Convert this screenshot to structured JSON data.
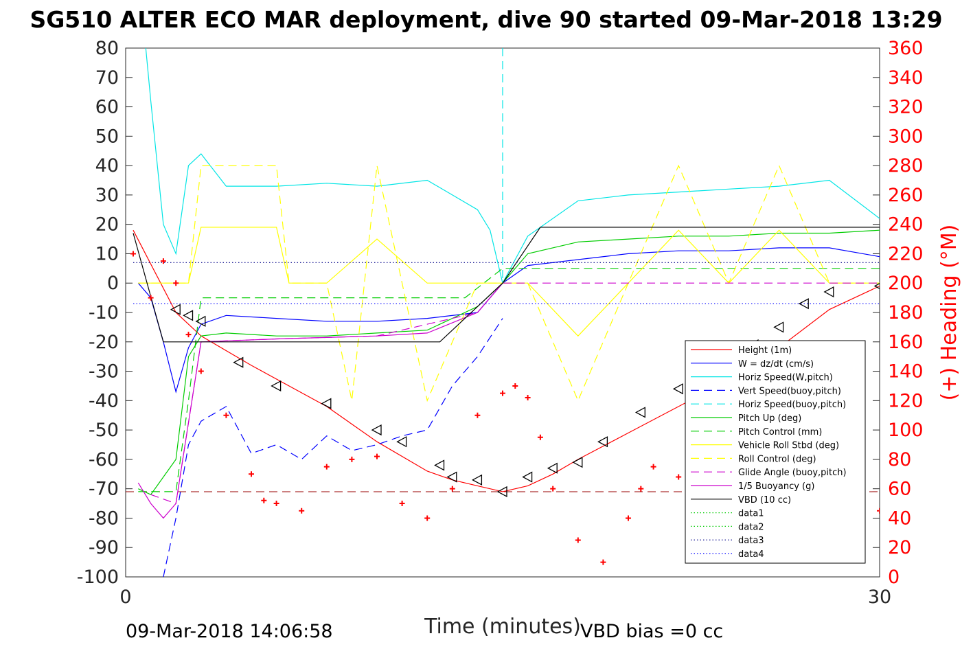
{
  "chart_data": {
    "type": "line",
    "title": "SG510 ALTER ECO MAR deployment, dive 90 started 09-Mar-2018 13:29",
    "xlabel": "Time (minutes)",
    "ylabel": "",
    "y2label": "(+) Heading (°M)",
    "xlim": [
      0,
      30
    ],
    "ylim": [
      -100,
      80
    ],
    "y2lim": [
      0,
      360
    ],
    "x_ticks": [
      "0",
      "30"
    ],
    "y_ticks": [
      "80",
      "70",
      "60",
      "50",
      "40",
      "30",
      "20",
      "10",
      "0",
      "-10",
      "-20",
      "-30",
      "-40",
      "-50",
      "-60",
      "-70",
      "-80",
      "-90",
      "-100"
    ],
    "y2_ticks": [
      "360",
      "340",
      "320",
      "300",
      "280",
      "260",
      "240",
      "220",
      "200",
      "180",
      "160",
      "140",
      "120",
      "100",
      "80",
      "60",
      "40",
      "20",
      "0"
    ],
    "footer_left": "09-Mar-2018 14:06:58",
    "footer_right": "VBD bias =0 cc",
    "legend_position": "lower-right (inside)",
    "series": [
      {
        "name": "Height (1m)",
        "color": "#ff0000",
        "style": "solid",
        "x": [
          0.3,
          2.0,
          3.0,
          5.0,
          8.0,
          10.0,
          12.0,
          13.0,
          14.0,
          15.0,
          16.0,
          17.0,
          18.0,
          20.0,
          22.0,
          24.0,
          26.0,
          28.0,
          30.0
        ],
        "y": [
          18.0,
          -10.0,
          -18.0,
          -28.0,
          -42.0,
          -54.0,
          -64.0,
          -67.0,
          -69.0,
          -71.0,
          -69.0,
          -65.0,
          -60.0,
          -51.0,
          -42.0,
          -33.0,
          -22.0,
          -9.0,
          -1.0
        ]
      },
      {
        "name": "W = dz/dt (cm/s)",
        "color": "#0000ff",
        "style": "solid",
        "x": [
          0.5,
          1.0,
          1.5,
          2.0,
          2.5,
          3.0,
          4.0,
          6.0,
          8.0,
          10.0,
          12.0,
          14.0,
          15.0,
          16.0,
          18.0,
          20.0,
          22.0,
          24.0,
          26.0,
          28.0,
          30.0
        ],
        "y": [
          0.0,
          -5.0,
          -20.0,
          -37.0,
          -22.0,
          -14.0,
          -11.0,
          -12.0,
          -13.0,
          -13.0,
          -12.0,
          -10.0,
          0.0,
          6.0,
          8.0,
          10.0,
          11.0,
          11.0,
          12.0,
          12.0,
          9.0
        ]
      },
      {
        "name": "Horiz Speed(W,pitch)",
        "color": "#00e5e5",
        "style": "solid",
        "x": [
          0.8,
          1.0,
          1.5,
          2.0,
          2.5,
          3.0,
          4.0,
          6.0,
          8.0,
          10.0,
          12.0,
          13.0,
          14.0,
          14.5,
          15.0,
          16.0,
          18.0,
          20.0,
          22.0,
          24.0,
          26.0,
          28.0,
          30.0
        ],
        "y": [
          80.0,
          62.0,
          20.0,
          10.0,
          40.0,
          44.0,
          33.0,
          33.0,
          34.0,
          33.0,
          35.0,
          30.0,
          25.0,
          18.0,
          0.0,
          16.0,
          28.0,
          30.0,
          31.0,
          32.0,
          33.0,
          35.0,
          22.0
        ]
      },
      {
        "name": "Vert Speed(buoy,pitch)",
        "color": "#0000ff",
        "style": "dashed",
        "x": [
          1.5,
          2.0,
          2.5,
          3.0,
          4.0,
          5.0,
          6.0,
          7.0,
          8.0,
          9.0,
          10.0,
          11.0,
          12.0,
          13.0,
          14.0,
          15.0
        ],
        "y": [
          -100.0,
          -80.0,
          -55.0,
          -47.0,
          -42.0,
          -58.0,
          -55.0,
          -60.0,
          -52.0,
          -57.0,
          -55.0,
          -52.0,
          -50.0,
          -35.0,
          -25.0,
          -12.0
        ]
      },
      {
        "name": "Horiz Speed(buoy,pitch)",
        "color": "#00e5e5",
        "style": "dashed",
        "x": [
          15.0,
          15.0
        ],
        "y": [
          80.0,
          0.0
        ]
      },
      {
        "name": "Pitch Up (deg)",
        "color": "#00cc00",
        "style": "solid",
        "x": [
          0.5,
          1.0,
          2.0,
          2.5,
          3.0,
          4.0,
          6.0,
          8.0,
          10.0,
          12.0,
          13.0,
          14.0,
          15.0,
          16.0,
          18.0,
          20.0,
          22.0,
          24.0,
          26.0,
          28.0,
          30.0
        ],
        "y": [
          -70.0,
          -72.0,
          -60.0,
          -25.0,
          -18.0,
          -17.0,
          -18.0,
          -18.0,
          -17.0,
          -16.0,
          -12.0,
          -8.0,
          0.0,
          10.0,
          14.0,
          15.0,
          16.0,
          16.0,
          17.0,
          17.0,
          18.0
        ]
      },
      {
        "name": "Pitch Control (mm)",
        "color": "#00cc00",
        "style": "dashed",
        "x": [
          0.5,
          2.0,
          2.5,
          3.0,
          4.0,
          6.0,
          8.0,
          10.0,
          12.0,
          13.5,
          15.0,
          16.0,
          18.0,
          20.0,
          22.0,
          24.0,
          26.0,
          28.0,
          30.0
        ],
        "y": [
          -71.0,
          -71.0,
          -40.0,
          -5.0,
          -5.0,
          -5.0,
          -5.0,
          -5.0,
          -5.0,
          -5.0,
          5.0,
          5.0,
          5.0,
          5.0,
          5.0,
          5.0,
          5.0,
          5.0,
          5.0
        ]
      },
      {
        "name": "Vehicle Roll Stbd (deg)",
        "color": "#ffff00",
        "style": "solid",
        "x": [
          0.5,
          2.5,
          3.0,
          6.0,
          6.5,
          8.0,
          10.0,
          12.0,
          14.0,
          16.0,
          18.0,
          20.0,
          22.0,
          24.0,
          26.0,
          28.0,
          30.0
        ],
        "y": [
          0.0,
          0.0,
          19.0,
          19.0,
          0.0,
          0.0,
          15.0,
          0.0,
          0.0,
          0.0,
          -18.0,
          0.0,
          18.0,
          0.0,
          18.0,
          0.0,
          0.0
        ]
      },
      {
        "name": "Roll Control (deg)",
        "color": "#ffff00",
        "style": "dashed",
        "x": [
          0.5,
          2.5,
          3.0,
          6.0,
          6.5,
          8.0,
          9.0,
          10.0,
          11.0,
          12.0,
          14.0,
          16.0,
          18.0,
          20.0,
          22.0,
          24.0,
          26.0,
          28.0,
          30.0
        ],
        "y": [
          0.0,
          0.0,
          40.0,
          40.0,
          0.0,
          0.0,
          -40.0,
          40.0,
          0.0,
          -40.0,
          0.0,
          0.0,
          -40.0,
          0.0,
          40.0,
          0.0,
          40.0,
          0.0,
          0.0
        ]
      },
      {
        "name": "Glide Angle (buoy,pitch)",
        "color": "#cc00cc",
        "style": "dashed",
        "x": [
          1.0,
          2.0,
          3.0,
          6.0,
          10.0,
          14.0,
          15.0,
          30.0
        ],
        "y": [
          -72.0,
          -75.0,
          -20.0,
          -19.0,
          -18.0,
          -10.0,
          0.0,
          0.0
        ]
      },
      {
        "name": "1/5 Buoyancy (g)",
        "color": "#cc00cc",
        "style": "solid",
        "x": [
          0.5,
          1.0,
          1.5,
          2.0,
          3.0,
          6.0,
          10.0,
          12.0,
          14.0,
          15.0
        ],
        "y": [
          -68.0,
          -75.0,
          -80.0,
          -75.0,
          -20.0,
          -19.0,
          -18.0,
          -17.0,
          -10.0,
          0.0
        ]
      },
      {
        "name": "VBD (10 cc)",
        "color": "#000000",
        "style": "solid",
        "x": [
          0.3,
          1.5,
          4.0,
          6.0,
          8.0,
          10.0,
          12.0,
          12.5,
          15.0,
          16.5,
          18.0,
          20.0,
          22.0,
          24.0,
          26.0,
          28.0,
          30.0
        ],
        "y": [
          17.0,
          -20.0,
          -20.0,
          -20.0,
          -20.0,
          -20.0,
          -20.0,
          -20.0,
          0.0,
          19.0,
          19.0,
          19.0,
          19.0,
          19.0,
          19.0,
          19.0,
          19.0
        ]
      },
      {
        "name": "data1",
        "color": "#00cc00",
        "style": "dotted",
        "x": [],
        "y": []
      },
      {
        "name": "data2",
        "color": "#00cc00",
        "style": "dotted",
        "x": [],
        "y": []
      },
      {
        "name": "data3",
        "color": "#000088",
        "style": "dotted",
        "x": [
          0.3,
          30.0
        ],
        "y": [
          7.0,
          7.0
        ]
      },
      {
        "name": "data4",
        "color": "#0000ff",
        "style": "dotted",
        "x": [
          0.3,
          30.0
        ],
        "y": [
          -7.0,
          -7.0
        ]
      }
    ],
    "reference_line": {
      "y": -71,
      "color": "#990000",
      "style": "dashed"
    },
    "heading": {
      "name": "(+) Heading (°M)",
      "axis": "right",
      "marker": "+",
      "color": "#ff0000",
      "x": [
        0.3,
        1.0,
        1.5,
        2.0,
        2.5,
        3.0,
        4.0,
        5.0,
        5.5,
        6.0,
        7.0,
        8.0,
        9.0,
        10.0,
        11.0,
        12.0,
        13.0,
        14.0,
        15.0,
        15.5,
        16.0,
        16.5,
        17.0,
        18.0,
        19.0,
        20.0,
        20.5,
        21.0,
        22.0,
        23.0,
        24.0,
        25.0,
        26.0,
        27.0,
        28.0,
        29.0,
        30.0
      ],
      "y": [
        220.0,
        190.0,
        215.0,
        200.0,
        165.0,
        140.0,
        110.0,
        70.0,
        52.0,
        50.0,
        45.0,
        75.0,
        80.0,
        82.0,
        50.0,
        40.0,
        60.0,
        110.0,
        125.0,
        130.0,
        122.0,
        95.0,
        60.0,
        25.0,
        10.0,
        40.0,
        60.0,
        75.0,
        68.0,
        55.0,
        35.0,
        40.0,
        52.0,
        60.0,
        70.0,
        60.0,
        45.0
      ]
    },
    "vbd_markers": {
      "x": [
        2.0,
        2.5,
        3.0,
        4.5,
        6.0,
        8.0,
        10.0,
        11.0,
        12.5,
        13.0,
        14.0,
        15.0,
        16.0,
        17.0,
        18.0,
        19.0,
        20.5,
        22.0,
        24.0,
        25.0,
        26.0,
        27.0,
        28.0,
        30.0
      ],
      "y": [
        -9.0,
        -11.0,
        -13.0,
        -27.0,
        -35.0,
        -41.0,
        -50.0,
        -54.0,
        -62.0,
        -66.0,
        -67.0,
        -71.0,
        -66.0,
        -63.0,
        -61.0,
        -54.0,
        -44.0,
        -36.0,
        -28.0,
        -21.0,
        -15.0,
        -7.0,
        -3.0,
        -1.0
      ]
    }
  }
}
